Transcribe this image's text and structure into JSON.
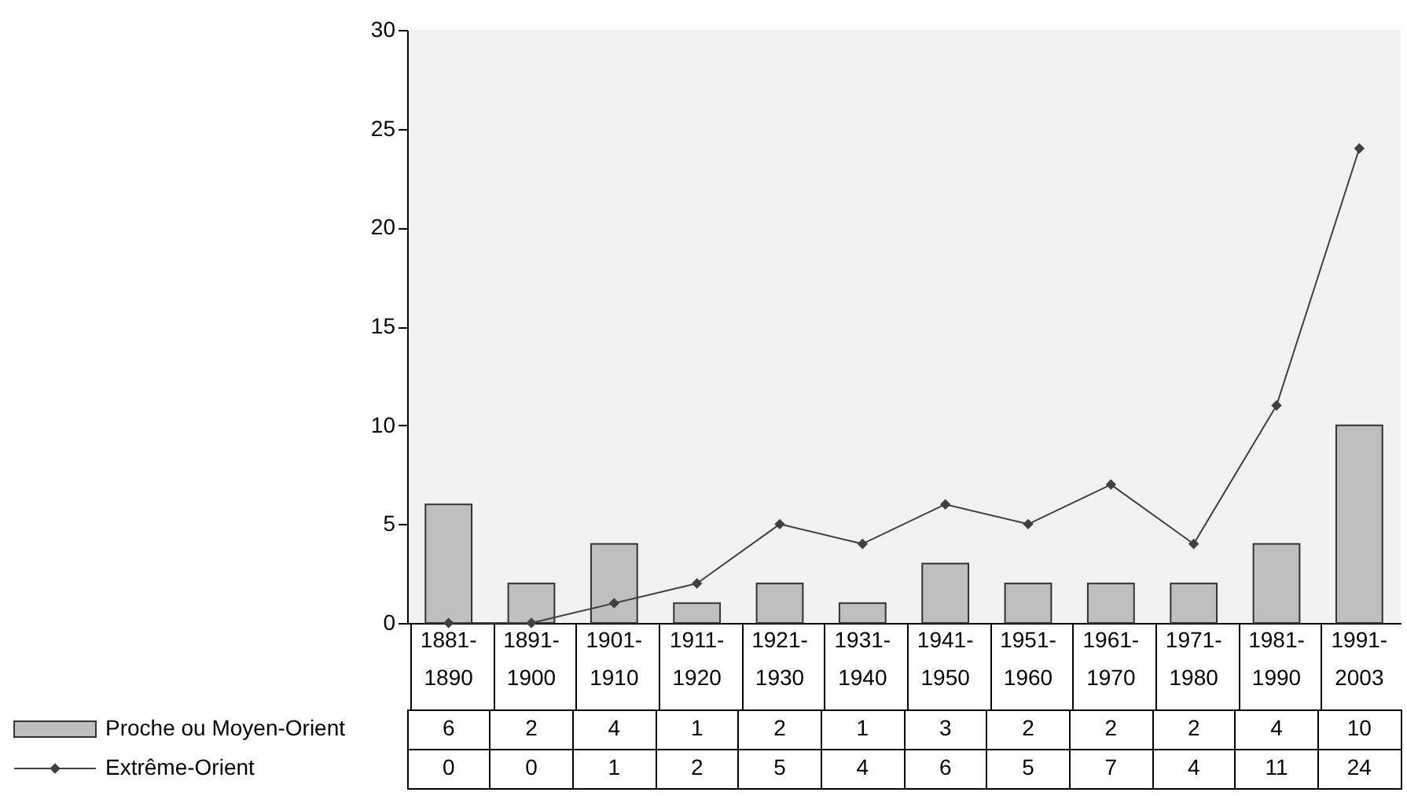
{
  "chart_data": {
    "type": "bar",
    "categories": [
      "1881-1890",
      "1891-1900",
      "1901-1910",
      "1911-1920",
      "1921-1930",
      "1931-1940",
      "1941-1950",
      "1951-1960",
      "1961-1970",
      "1971-1980",
      "1981-1990",
      "1991-2003"
    ],
    "series": [
      {
        "name": "Proche ou Moyen-Orient",
        "color": "#bfbfbf",
        "values": [
          6,
          2,
          4,
          1,
          2,
          1,
          3,
          2,
          2,
          2,
          4,
          10
        ]
      },
      {
        "name": "Extrême-Orient",
        "type": "line",
        "color": "#404040",
        "values": [
          0,
          0,
          1,
          2,
          5,
          4,
          6,
          5,
          7,
          4,
          11,
          24
        ]
      }
    ],
    "ylim": [
      0,
      30
    ],
    "yticks": [
      0,
      5,
      10,
      15,
      20,
      25,
      30
    ],
    "marker": "diamond",
    "legend": "bottom left",
    "data_labels": true
  }
}
